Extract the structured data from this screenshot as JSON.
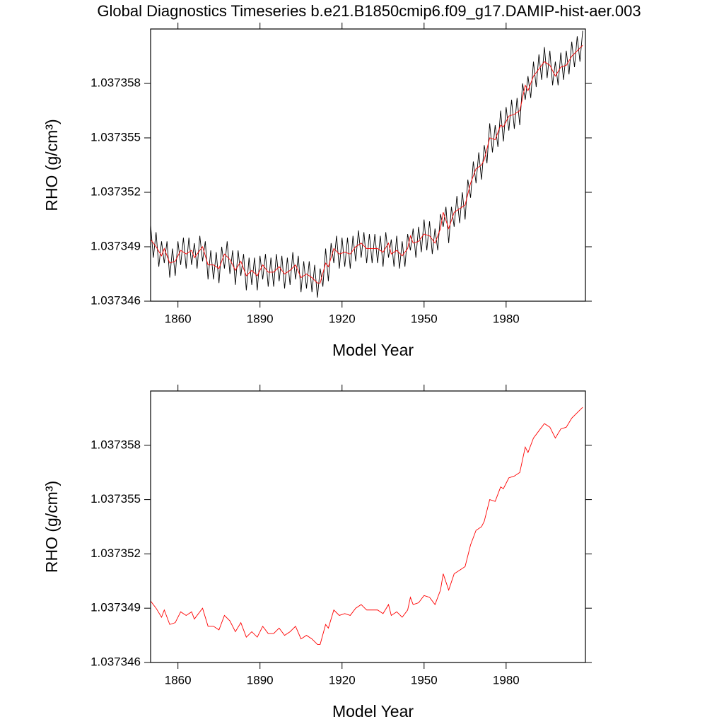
{
  "chart_data": [
    {
      "type": "line",
      "title": "Global Diagnostics Timeseries b.e21.B1850cmip6.f09_g17.DAMIP-hist-aer.003",
      "x_label": "Model Year",
      "y_label": "RHO (g/cm³)",
      "xlim": [
        1850,
        2009
      ],
      "ylim": [
        1.037346,
        1.037361
      ],
      "xticks": [
        1860,
        1890,
        1920,
        1950,
        1980
      ],
      "yticks": [
        1.037346,
        1.037349,
        1.037352,
        1.037355,
        1.037358
      ],
      "series": [
        {
          "color": "#000000",
          "x": [
            1850,
            1851,
            1852,
            1853,
            1854,
            1855,
            1856,
            1857,
            1858,
            1859,
            1860,
            1861,
            1862,
            1863,
            1864,
            1865,
            1866,
            1867,
            1868,
            1869,
            1870,
            1871,
            1872,
            1873,
            1874,
            1875,
            1876,
            1877,
            1878,
            1879,
            1880,
            1881,
            1882,
            1883,
            1884,
            1885,
            1886,
            1887,
            1888,
            1889,
            1890,
            1891,
            1892,
            1893,
            1894,
            1895,
            1896,
            1897,
            1898,
            1899,
            1900,
            1901,
            1902,
            1903,
            1904,
            1905,
            1906,
            1907,
            1908,
            1909,
            1910,
            1911,
            1912,
            1913,
            1914,
            1915,
            1916,
            1917,
            1918,
            1919,
            1920,
            1921,
            1922,
            1923,
            1924,
            1925,
            1926,
            1927,
            1928,
            1929,
            1930,
            1931,
            1932,
            1933,
            1934,
            1935,
            1936,
            1937,
            1938,
            1939,
            1940,
            1941,
            1942,
            1943,
            1944,
            1945,
            1946,
            1947,
            1948,
            1949,
            1950,
            1951,
            1952,
            1953,
            1954,
            1955,
            1956,
            1957,
            1958,
            1959,
            1960,
            1961,
            1962,
            1963,
            1964,
            1965,
            1966,
            1967,
            1968,
            1969,
            1970,
            1971,
            1972,
            1973,
            1974,
            1975,
            1976,
            1977,
            1978,
            1979,
            1980,
            1981,
            1982,
            1983,
            1984,
            1985,
            1986,
            1987,
            1988,
            1989,
            1990,
            1991,
            1992,
            1993,
            1994,
            1995,
            1996,
            1997,
            1998,
            1999,
            2000,
            2001,
            2002,
            2003,
            2004,
            2005,
            2006,
            2007,
            2008
          ],
          "values": [
            1.0373502,
            1.0373484,
            1.0373498,
            1.0373479,
            1.0373493,
            1.0373481,
            1.0373493,
            1.0373473,
            1.0373489,
            1.0373474,
            1.0373493,
            1.037348,
            1.0373495,
            1.0373478,
            1.0373495,
            1.037348,
            1.0373492,
            1.0373478,
            1.0373496,
            1.0373482,
            1.0373493,
            1.0373472,
            1.0373488,
            1.0373472,
            1.0373487,
            1.037347,
            1.037349,
            1.0373478,
            1.0373493,
            1.0373475,
            1.0373488,
            1.0373469,
            1.0373488,
            1.0373474,
            1.0373486,
            1.0373466,
            1.0373484,
            1.0373469,
            1.0373484,
            1.0373466,
            1.0373485,
            1.0373472,
            1.0373486,
            1.0373468,
            1.0373484,
            1.0373468,
            1.0373486,
            1.0373471,
            1.0373485,
            1.0373467,
            1.0373484,
            1.0373469,
            1.0373487,
            1.0373472,
            1.0373485,
            1.0373465,
            1.0373482,
            1.0373467,
            1.0373482,
            1.0373465,
            1.037348,
            1.0373462,
            1.0373478,
            1.0373468,
            1.0373489,
            1.0373471,
            1.0373492,
            1.0373481,
            1.0373496,
            1.0373478,
            1.0373495,
            1.0373479,
            1.0373495,
            1.0373478,
            1.0373496,
            1.0373482,
            1.0373499,
            1.0373484,
            1.0373498,
            1.0373481,
            1.0373497,
            1.0373481,
            1.0373497,
            1.0373481,
            1.0373496,
            1.0373479,
            1.0373498,
            1.0373484,
            1.0373494,
            1.0373479,
            1.0373496,
            1.0373478,
            1.0373493,
            1.0373479,
            1.0373497,
            1.0373488,
            1.03735,
            1.0373484,
            1.0373501,
            1.0373487,
            1.0373505,
            1.0373488,
            1.0373504,
            1.0373486,
            1.03735,
            1.0373488,
            1.0373508,
            1.0373501,
            1.0373512,
            1.0373492,
            1.0373512,
            1.0373501,
            1.0373518,
            1.0373503,
            1.037352,
            1.0373505,
            1.0373527,
            1.0373517,
            1.0373537,
            1.0373525,
            1.0373542,
            1.0373527,
            1.0373546,
            1.0373536,
            1.0373558,
            1.0373542,
            1.0373557,
            1.0373545,
            1.0373565,
            1.0373548,
            1.0373567,
            1.0373554,
            1.0373571,
            1.0373555,
            1.0373572,
            1.0373557,
            1.037358,
            1.0373571,
            1.0373584,
            1.0373572,
            1.0373592,
            1.0373578,
            1.0373596,
            1.0373582,
            1.03736,
            1.0373583,
            1.0373598,
            1.0373579,
            1.0373592,
            1.0373579,
            1.0373597,
            1.0373582,
            1.0373598,
            1.0373585,
            1.0373603,
            1.0373589,
            1.0373606,
            1.0373592,
            1.0373609
          ]
        },
        {
          "color": "#ff0000",
          "x": [
            1850,
            1852,
            1854,
            1855,
            1857,
            1859,
            1861,
            1863,
            1865,
            1866,
            1869,
            1871,
            1873,
            1875,
            1877,
            1879,
            1881,
            1883,
            1885,
            1887,
            1889,
            1891,
            1893,
            1895,
            1897,
            1899,
            1901,
            1903,
            1905,
            1907,
            1909,
            1911,
            1912,
            1914,
            1915,
            1917,
            1919,
            1921,
            1923,
            1925,
            1927,
            1929,
            1931,
            1933,
            1935,
            1937,
            1938,
            1940,
            1942,
            1944,
            1945,
            1946,
            1948,
            1950,
            1952,
            1954,
            1956,
            1957,
            1959,
            1961,
            1963,
            1965,
            1967,
            1969,
            1971,
            1972,
            1974,
            1976,
            1978,
            1979,
            1981,
            1983,
            1985,
            1987,
            1988,
            1990,
            1992,
            1994,
            1996,
            1998,
            2000,
            2002,
            2004,
            2006,
            2008
          ],
          "values": [
            1.0373494,
            1.037349,
            1.0373485,
            1.0373489,
            1.0373481,
            1.0373482,
            1.0373488,
            1.0373486,
            1.0373488,
            1.0373484,
            1.037349,
            1.037348,
            1.037348,
            1.0373478,
            1.0373486,
            1.0373483,
            1.0373477,
            1.0373482,
            1.0373474,
            1.0373477,
            1.0373474,
            1.037348,
            1.0373476,
            1.0373476,
            1.0373479,
            1.0373475,
            1.0373477,
            1.037348,
            1.0373473,
            1.0373475,
            1.0373473,
            1.037347,
            1.037347,
            1.0373481,
            1.0373479,
            1.0373489,
            1.0373486,
            1.0373487,
            1.0373486,
            1.037349,
            1.0373492,
            1.0373489,
            1.0373489,
            1.0373489,
            1.0373487,
            1.0373492,
            1.0373486,
            1.0373488,
            1.0373485,
            1.0373489,
            1.0373496,
            1.0373492,
            1.0373493,
            1.0373497,
            1.0373496,
            1.0373492,
            1.03735,
            1.0373509,
            1.03735,
            1.0373509,
            1.0373511,
            1.0373513,
            1.0373525,
            1.0373533,
            1.0373535,
            1.0373538,
            1.037355,
            1.0373549,
            1.0373557,
            1.0373556,
            1.0373562,
            1.0373563,
            1.0373565,
            1.0373579,
            1.0373576,
            1.0373584,
            1.0373588,
            1.0373592,
            1.037359,
            1.0373584,
            1.0373589,
            1.037359,
            1.0373595,
            1.0373598,
            1.0373601
          ]
        }
      ]
    },
    {
      "type": "line",
      "x_label": "Model Year",
      "y_label": "RHO (g/cm³)",
      "xlim": [
        1850,
        2009
      ],
      "ylim": [
        1.037346,
        1.037361
      ],
      "xticks": [
        1860,
        1890,
        1920,
        1950,
        1980
      ],
      "yticks": [
        1.037346,
        1.037349,
        1.037352,
        1.037355,
        1.037358
      ],
      "series": [
        {
          "color": "#ff0000",
          "x": [
            1850,
            1852,
            1854,
            1855,
            1857,
            1859,
            1861,
            1863,
            1865,
            1866,
            1869,
            1871,
            1873,
            1875,
            1877,
            1879,
            1881,
            1883,
            1885,
            1887,
            1889,
            1891,
            1893,
            1895,
            1897,
            1899,
            1901,
            1903,
            1905,
            1907,
            1909,
            1911,
            1912,
            1914,
            1915,
            1917,
            1919,
            1921,
            1923,
            1925,
            1927,
            1929,
            1931,
            1933,
            1935,
            1937,
            1938,
            1940,
            1942,
            1944,
            1945,
            1946,
            1948,
            1950,
            1952,
            1954,
            1956,
            1957,
            1959,
            1961,
            1963,
            1965,
            1967,
            1969,
            1971,
            1972,
            1974,
            1976,
            1978,
            1979,
            1981,
            1983,
            1985,
            1987,
            1988,
            1990,
            1992,
            1994,
            1996,
            1998,
            2000,
            2002,
            2004,
            2006,
            2008
          ],
          "values": [
            1.0373494,
            1.037349,
            1.0373485,
            1.0373489,
            1.0373481,
            1.0373482,
            1.0373488,
            1.0373486,
            1.0373488,
            1.0373484,
            1.037349,
            1.037348,
            1.037348,
            1.0373478,
            1.0373486,
            1.0373483,
            1.0373477,
            1.0373482,
            1.0373474,
            1.0373477,
            1.0373474,
            1.037348,
            1.0373476,
            1.0373476,
            1.0373479,
            1.0373475,
            1.0373477,
            1.037348,
            1.0373473,
            1.0373475,
            1.0373473,
            1.037347,
            1.037347,
            1.0373481,
            1.0373479,
            1.0373489,
            1.0373486,
            1.0373487,
            1.0373486,
            1.037349,
            1.0373492,
            1.0373489,
            1.0373489,
            1.0373489,
            1.0373487,
            1.0373492,
            1.0373486,
            1.0373488,
            1.0373485,
            1.0373489,
            1.0373496,
            1.0373492,
            1.0373493,
            1.0373497,
            1.0373496,
            1.0373492,
            1.03735,
            1.0373509,
            1.03735,
            1.0373509,
            1.0373511,
            1.0373513,
            1.0373525,
            1.0373533,
            1.0373535,
            1.0373538,
            1.037355,
            1.0373549,
            1.0373557,
            1.0373556,
            1.0373562,
            1.0373563,
            1.0373565,
            1.0373579,
            1.0373576,
            1.0373584,
            1.0373588,
            1.0373592,
            1.037359,
            1.0373584,
            1.0373589,
            1.037359,
            1.0373595,
            1.0373598,
            1.0373601
          ]
        }
      ]
    }
  ]
}
